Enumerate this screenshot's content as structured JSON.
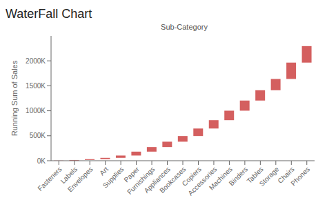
{
  "chart_data": {
    "type": "waterfall",
    "title": "WaterFall Chart",
    "xlabel": "Sub-Category",
    "ylabel": "Running Sum of Sales",
    "categories": [
      "Fasteners",
      "Labels",
      "Envelopes",
      "Art",
      "Supplies",
      "Paper",
      "Furnishings",
      "Appliances",
      "Bookcases",
      "Copiers",
      "Accessories",
      "Machines",
      "Binders",
      "Tables",
      "Storage",
      "Chairs",
      "Phones"
    ],
    "values": [
      3000,
      12000,
      16000,
      27000,
      46000,
      78000,
      92000,
      107000,
      114000,
      150000,
      167000,
      190000,
      203000,
      206000,
      226000,
      328000,
      330000
    ],
    "color": "#d45f5f",
    "ylim": [
      0,
      2500000
    ],
    "yticks": [
      {
        "value": 0,
        "label": "0K"
      },
      {
        "value": 500000,
        "label": "500K"
      },
      {
        "value": 1000000,
        "label": "1000K"
      },
      {
        "value": 1500000,
        "label": "1500K"
      },
      {
        "value": 2000000,
        "label": "2000K"
      }
    ],
    "grid": false
  }
}
